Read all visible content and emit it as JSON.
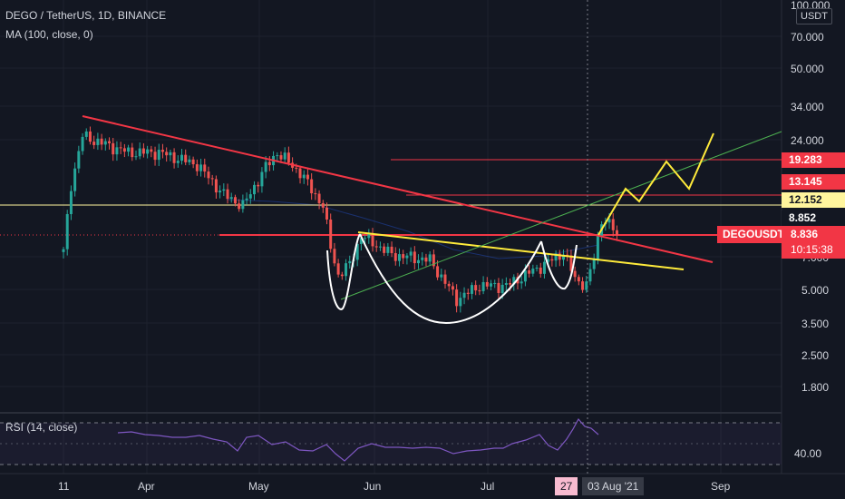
{
  "header": {
    "symbol_line": "DEGO / TetherUS, 1D, BINANCE",
    "indicator_line": "MA (100, close, 0)",
    "rsi_line": "RSI (14, close)",
    "currency_unit": "USDT"
  },
  "price_axis": {
    "labels": [
      "100.000",
      "70.000",
      "50.000",
      "34.000",
      "24.000",
      "7.000",
      "5.000",
      "3.500",
      "2.500",
      "1.800"
    ],
    "rsi_label": "40.00"
  },
  "time_axis": {
    "labels": [
      "11",
      "Apr",
      "May",
      "Jun",
      "Jul",
      "Sep"
    ]
  },
  "crosshair": {
    "date_a": "27",
    "date_b": "03 Aug '21"
  },
  "level_tags": [
    {
      "label": "19.283",
      "color": "#f23645",
      "text_color": "#ffffff"
    },
    {
      "label": "13.145",
      "color": "#f23645",
      "text_color": "#ffffff"
    },
    {
      "label": "12.152",
      "color": "#fff59d",
      "text_color": "#131722"
    },
    {
      "label": "8.852",
      "color": "#131722",
      "text_color": "#ffffff"
    }
  ],
  "current": {
    "ticker": "DEGOUSDT",
    "price": "8.836",
    "countdown": "10:15:38"
  },
  "colors": {
    "up": "#26a69a",
    "down": "#ef5350",
    "resistance": "#f23645",
    "support_yellow": "#ffeb3b",
    "cup_white": "#ffffff",
    "trend_green": "#4caf50",
    "rsi_line": "#7e57c2",
    "ma_line": "#2962ff"
  },
  "chart_data": {
    "type": "candlestick",
    "title": "DEGO / TetherUS, 1D, BINANCE",
    "scale": "log",
    "ylim": [
      1.8,
      100
    ],
    "y_ticks": [
      100,
      70,
      50,
      34,
      24,
      7,
      5,
      3.5,
      2.5,
      1.8
    ],
    "x_ticks": [
      "11",
      "Apr",
      "May",
      "Jun",
      "Jul",
      "Sep"
    ],
    "price_path_keypoints": [
      {
        "date": "2021-03-11",
        "close": 7.4
      },
      {
        "date": "2021-03-13",
        "close": 15.0
      },
      {
        "date": "2021-03-16",
        "close": 25.0
      },
      {
        "date": "2021-03-20",
        "close": 23.5
      },
      {
        "date": "2021-03-28",
        "close": 21.0
      },
      {
        "date": "2021-04-05",
        "close": 21.0
      },
      {
        "date": "2021-04-15",
        "close": 18.5
      },
      {
        "date": "2021-04-22",
        "close": 13.5
      },
      {
        "date": "2021-04-27",
        "close": 12.0
      },
      {
        "date": "2021-05-03",
        "close": 18.0
      },
      {
        "date": "2021-05-06",
        "close": 21.0
      },
      {
        "date": "2021-05-12",
        "close": 17.0
      },
      {
        "date": "2021-05-18",
        "close": 12.0
      },
      {
        "date": "2021-05-20",
        "close": 7.8
      },
      {
        "date": "2021-05-22",
        "close": 5.8
      },
      {
        "date": "2021-05-25",
        "close": 6.5
      },
      {
        "date": "2021-05-28",
        "close": 8.8
      },
      {
        "date": "2021-06-05",
        "close": 7.2
      },
      {
        "date": "2021-06-15",
        "close": 6.8
      },
      {
        "date": "2021-06-22",
        "close": 4.5
      },
      {
        "date": "2021-06-28",
        "close": 5.2
      },
      {
        "date": "2021-07-05",
        "close": 5.2
      },
      {
        "date": "2021-07-15",
        "close": 6.5
      },
      {
        "date": "2021-07-20",
        "close": 7.4
      },
      {
        "date": "2021-07-23",
        "close": 5.6
      },
      {
        "date": "2021-07-26",
        "close": 5.2
      },
      {
        "date": "2021-07-28",
        "close": 7.0
      },
      {
        "date": "2021-07-30",
        "close": 10.5
      },
      {
        "date": "2021-08-02",
        "close": 9.5
      },
      {
        "date": "2021-08-03",
        "close": 8.836
      }
    ],
    "horizontal_levels": [
      19.283,
      13.145,
      12.152,
      8.852
    ],
    "current_price": 8.836,
    "rsi": {
      "label": "RSI (14, close)",
      "tick": 40.0
    },
    "annotations": [
      "descending red trendline",
      "yellow descending neckline",
      "white cup and handle",
      "green ascending trendline",
      "yellow projected zigzag path"
    ]
  }
}
